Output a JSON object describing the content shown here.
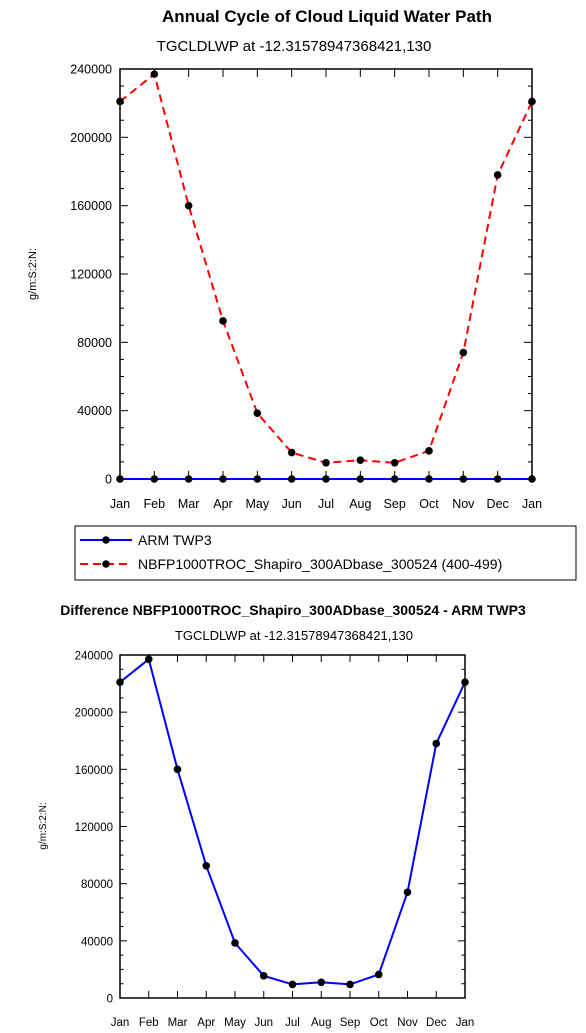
{
  "chart_data": [
    {
      "type": "line",
      "title": "Annual Cycle of Cloud Liquid Water Path",
      "subtitle": "TGCLDLWP at -12.315789473684​21,130",
      "xlabel": "",
      "ylabel": "g/m:S:2:N:",
      "categories": [
        "Jan",
        "Feb",
        "Mar",
        "Apr",
        "May",
        "Jun",
        "Jul",
        "Aug",
        "Sep",
        "Oct",
        "Nov",
        "Dec",
        "Jan"
      ],
      "ylim": [
        0,
        240000
      ],
      "yticks": [
        0,
        40000,
        80000,
        120000,
        160000,
        200000,
        240000
      ],
      "ytick_labels": [
        "0",
        "40000",
        "80000",
        "120000",
        "160000",
        "200000",
        "240000"
      ],
      "legend_position": "below",
      "series": [
        {
          "name": "ARM TWP3",
          "color": "#0000ff",
          "style": "solid",
          "marker": "dot",
          "values": [
            0,
            0,
            0,
            0,
            0,
            0,
            0,
            0,
            0,
            0,
            0,
            0,
            0
          ]
        },
        {
          "name": "NBFP1000TROC_Shapiro_300ADbase_300524 (400-499)",
          "color": "#ff0000",
          "style": "dashed",
          "marker": "dot",
          "values": [
            221000,
            237000,
            160000,
            92500,
            38500,
            15500,
            9500,
            11000,
            9500,
            16500,
            74000,
            178000,
            221000
          ]
        }
      ]
    },
    {
      "type": "line",
      "title": "Difference NBFP1000TROC_Shapiro_300ADbase_300524 - ARM TWP3",
      "subtitle": "TGCLDLWP at -12.315789473684​21,130",
      "xlabel": "",
      "ylabel": "g/m:S:2:N:",
      "categories": [
        "Jan",
        "Feb",
        "Mar",
        "Apr",
        "May",
        "Jun",
        "Jul",
        "Aug",
        "Sep",
        "Oct",
        "Nov",
        "Dec",
        "Jan"
      ],
      "ylim": [
        0,
        240000
      ],
      "yticks": [
        0,
        40000,
        80000,
        120000,
        160000,
        200000,
        240000
      ],
      "ytick_labels": [
        "0",
        "40000",
        "80000",
        "120000",
        "160000",
        "200000",
        "240000"
      ],
      "series": [
        {
          "color": "#0000ff",
          "style": "solid",
          "marker": "dot",
          "values": [
            221000,
            237000,
            160000,
            92500,
            38500,
            15500,
            9500,
            11000,
            9500,
            16500,
            74000,
            178000,
            221000
          ]
        }
      ]
    }
  ]
}
